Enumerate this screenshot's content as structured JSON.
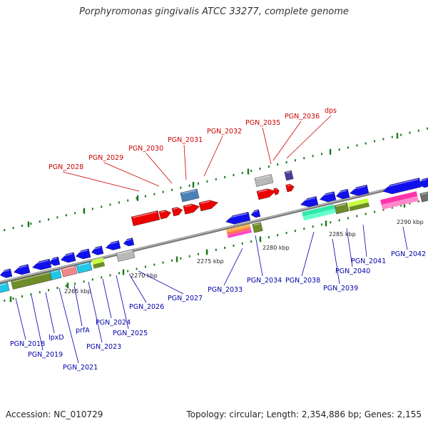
{
  "title": "Porphyromonas gingivalis ATCC 33277, complete genome",
  "footer": {
    "accession": "Accession: NC_010729",
    "summary": "Topology: circular; Length: 2,354,886 bp; Genes: 2,155"
  },
  "colors": {
    "label_forward": "#cc0000",
    "label_reverse": "#0000aa",
    "backbone": "#7a7a7a",
    "tick": "#1a7a1a",
    "cds_red": "#ee0000",
    "cds_blue": "#1010ee"
  },
  "scale_labels": [
    "2265 kbp",
    "2270 kbp",
    "2275 kbp",
    "2280 kbp",
    "2285 kbp",
    "2290 kbp"
  ],
  "forward_labels": [
    "PGN_2028",
    "PGN_2029",
    "PGN_2030",
    "PGN_2031",
    "PGN_2032",
    "PGN_2035",
    "PGN_2036",
    "dps"
  ],
  "reverse_labels": [
    "PGN_2018",
    "PGN_2019",
    "lpxD",
    "PGN_2021",
    "prfA",
    "PGN_2023",
    "PGN_2024",
    "PGN_2025",
    "PGN_2026",
    "PGN_2027",
    "PGN_2033",
    "PGN_2034",
    "PGN_2038",
    "PGN_2039",
    "PGN_2040",
    "PGN_2041",
    "PGN_2042"
  ]
}
